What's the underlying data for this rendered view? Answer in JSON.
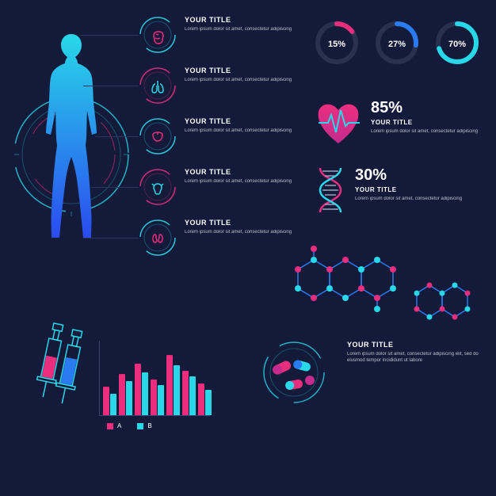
{
  "colors": {
    "bg": "#131a3a",
    "cyan": "#28d8e8",
    "blue": "#2a7bf0",
    "pink": "#ea2e7e",
    "magenta": "#c42c8e",
    "ring_track": "#28324f",
    "text": "#ffffff",
    "text_muted": "#9aa3c0",
    "connector": "#2a3560"
  },
  "body_figure": {
    "gradient_top": "#28d8e8",
    "gradient_bottom": "#2a4bf0",
    "outer_ring_color": "#28d8e8",
    "ring_broken_segments": 3
  },
  "organ_items": [
    {
      "id": "brain",
      "title": "YOUR TITLE",
      "desc": "Lorem ipsum dolor sit amet, consectetur adipiscing",
      "icon_color": "#ea2e7e",
      "ring_color": "#28d8e8"
    },
    {
      "id": "lungs",
      "title": "YOUR TITLE",
      "desc": "Lorem ipsum dolor sit amet, consectetur adipiscing",
      "icon_color": "#28d8e8",
      "ring_color": "#ea2e7e"
    },
    {
      "id": "liver",
      "title": "YOUR TITLE",
      "desc": "Lorem ipsum dolor sit amet, consectetur adipiscing",
      "icon_color": "#ea2e7e",
      "ring_color": "#28d8e8"
    },
    {
      "id": "uterus",
      "title": "YOUR TITLE",
      "desc": "Lorem ipsum dolor sit amet, consectetur adipiscing",
      "icon_color": "#28d8e8",
      "ring_color": "#ea2e7e"
    },
    {
      "id": "kidneys",
      "title": "YOUR TITLE",
      "desc": "Lorem ipsum dolor sit amet, consectetur adipiscing",
      "icon_color": "#ea2e7e",
      "ring_color": "#28d8e8"
    }
  ],
  "donuts": [
    {
      "value": 15,
      "label": "15%",
      "color": "#ea2e7e",
      "track": "#28324f"
    },
    {
      "value": 27,
      "label": "27%",
      "color": "#2a7bf0",
      "track": "#28324f"
    },
    {
      "value": 70,
      "label": "70%",
      "color": "#28d8e8",
      "track": "#28324f"
    }
  ],
  "heart_stat": {
    "percent": "85%",
    "title": "YOUR TITLE",
    "desc": "Lorem ipsum dolor sit amet, consectetur adipiscing",
    "heart_top": "#ea2e7e",
    "heart_bottom": "#c42c8e",
    "pulse_color": "#28d8e8"
  },
  "dna_stat": {
    "percent": "30%",
    "title": "YOUR TITLE",
    "desc": "Lorem ipsum dolor sit amet, consectetur adipiscing",
    "strand1": "#ea2e7e",
    "strand2": "#28d8e8"
  },
  "molecules": {
    "node_color": "#ea2e7e",
    "node_color2": "#28d8e8",
    "edge_color": "#2a7bf0"
  },
  "syringes": [
    {
      "fill": "#ea2e7e",
      "outline": "#28d8e8"
    },
    {
      "fill": "#2a7bf0",
      "outline": "#28d8e8"
    }
  ],
  "bar_chart": {
    "type": "bar",
    "groups": 7,
    "series": [
      {
        "label": "A",
        "color": "#ea2e7e",
        "values": [
          40,
          58,
          72,
          50,
          85,
          62,
          44
        ]
      },
      {
        "label": "B",
        "color": "#28d8e8",
        "values": [
          30,
          48,
          60,
          42,
          70,
          54,
          36
        ]
      }
    ],
    "ymax": 100,
    "axis_color": "#3a4570"
  },
  "pills_section": {
    "title": "YOUR TITLE",
    "desc": "Lorem ipsum dolor sit amet, consectetur adipiscing elit, sed do eiusmod tempor incididunt ut labore",
    "ring_color": "#28d8e8",
    "pill_colors": [
      "#ea2e7e",
      "#c42c8e",
      "#28d8e8",
      "#2a7bf0"
    ]
  }
}
